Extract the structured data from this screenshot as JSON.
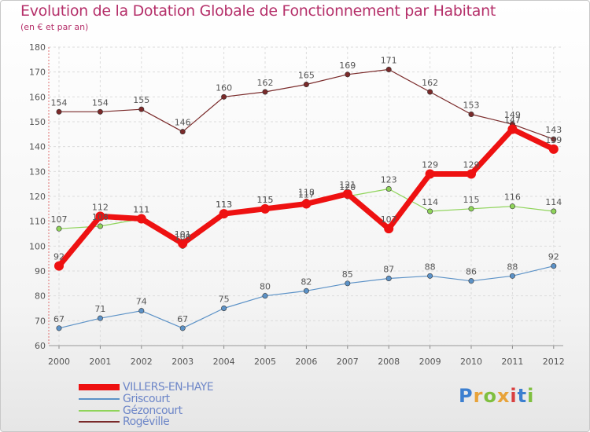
{
  "title": "Evolution de la Dotation Globale de Fonctionnement par Habitant",
  "subtitle": "(en € et par an)",
  "logo": {
    "text": "Proxiti",
    "colors": [
      "#3c7fd0",
      "#e8a33a",
      "#7fbf3f",
      "#e8a33a",
      "#d94040",
      "#3c7fd0",
      "#7fbf3f"
    ]
  },
  "chart_data": {
    "type": "line",
    "title": "Evolution de la Dotation Globale de Fonctionnement par Habitant",
    "xlabel": "",
    "ylabel": "(en € et par an)",
    "ylim": [
      60,
      180
    ],
    "yticks": [
      60,
      70,
      80,
      90,
      100,
      110,
      120,
      130,
      140,
      150,
      160,
      170,
      180
    ],
    "grid": true,
    "categories": [
      "2000",
      "2001",
      "2002",
      "2003",
      "2004",
      "2005",
      "2006",
      "2007",
      "2008",
      "2009",
      "2010",
      "2011",
      "2012"
    ],
    "series": [
      {
        "name": "Rogéville",
        "color": "#7a2a2a",
        "values": [
          154,
          154,
          155,
          146,
          160,
          162,
          165,
          169,
          171,
          162,
          153,
          149,
          143
        ]
      },
      {
        "name": "Gézoncourt",
        "color": "#8fd45a",
        "values": [
          107,
          108,
          111,
          100,
          113,
          115,
          118,
          120,
          123,
          114,
          115,
          116,
          114
        ]
      },
      {
        "name": "Griscourt",
        "color": "#5c92c7",
        "values": [
          67,
          71,
          74,
          67,
          75,
          80,
          82,
          85,
          87,
          88,
          86,
          88,
          92
        ]
      },
      {
        "name": "VILLERS-EN-HAYE",
        "color": "#ee1111",
        "values": [
          92,
          112,
          111,
          101,
          113,
          115,
          117,
          121,
          107,
          129,
          129,
          147,
          139
        ]
      }
    ],
    "legend": [
      "VILLERS-EN-HAYE",
      "Griscourt",
      "Gézoncourt",
      "Rogéville"
    ]
  }
}
